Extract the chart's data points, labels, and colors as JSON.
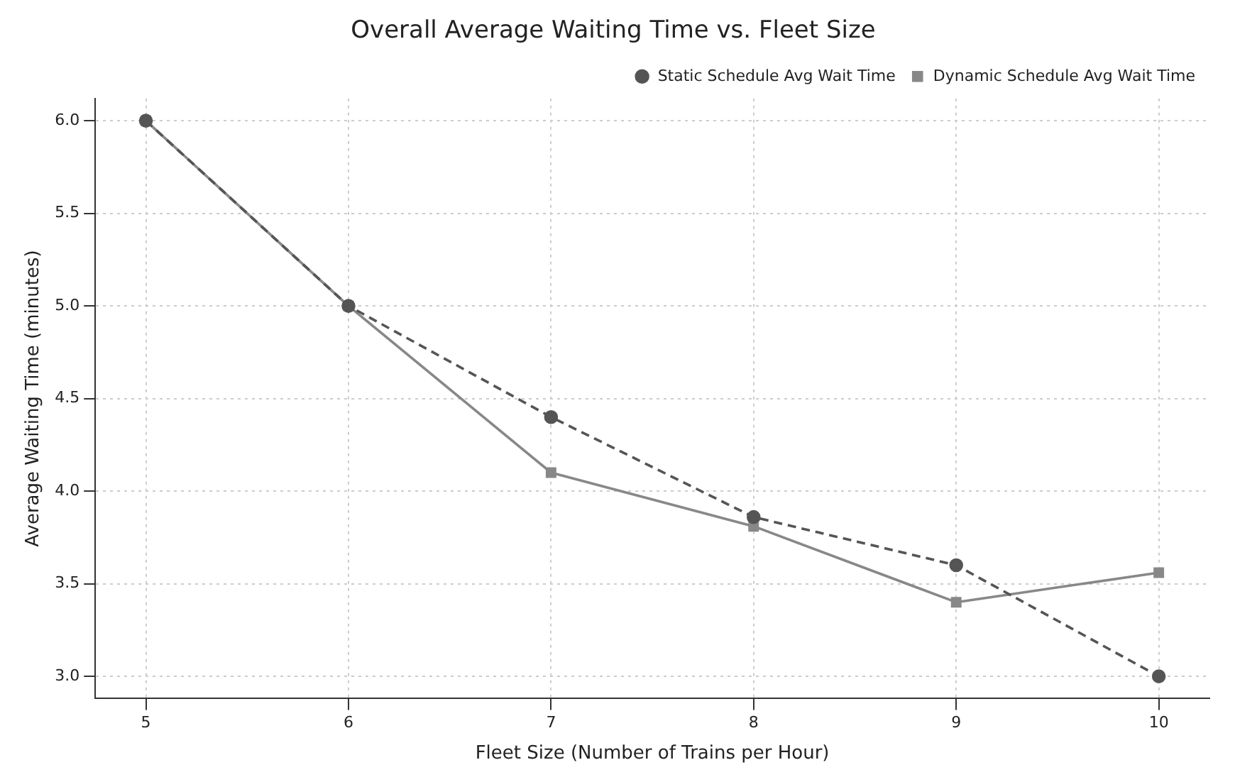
{
  "chart_data": {
    "type": "line",
    "title": "Overall Average Waiting Time vs. Fleet Size",
    "xlabel": "Fleet Size (Number of Trains per Hour)",
    "ylabel": "Average Waiting Time (minutes)",
    "x": [
      5,
      6,
      7,
      8,
      9,
      10
    ],
    "series": [
      {
        "name": "Static Schedule Avg Wait Time",
        "color": "#555555",
        "marker": "circle",
        "line_style": "dashed",
        "values": [
          6.0,
          5.0,
          4.4,
          3.86,
          3.6,
          3.0
        ]
      },
      {
        "name": "Dynamic Schedule Avg Wait Time",
        "color": "#888888",
        "marker": "square",
        "line_style": "solid",
        "values": [
          6.0,
          5.0,
          4.1,
          3.81,
          3.4,
          3.56
        ]
      }
    ],
    "xlim": [
      4.75,
      10.25
    ],
    "xticks": [
      5,
      6,
      7,
      8,
      9,
      10
    ],
    "ylim": [
      2.88,
      6.12
    ],
    "yticks": [
      {
        "value": 3,
        "label": "3.0"
      },
      3.5,
      {
        "value": 4,
        "label": "4.0"
      },
      4.5,
      {
        "value": 5,
        "label": "5.0"
      },
      5.5,
      {
        "value": 6,
        "label": "6.0"
      }
    ],
    "grid": true,
    "legend": "top right"
  }
}
